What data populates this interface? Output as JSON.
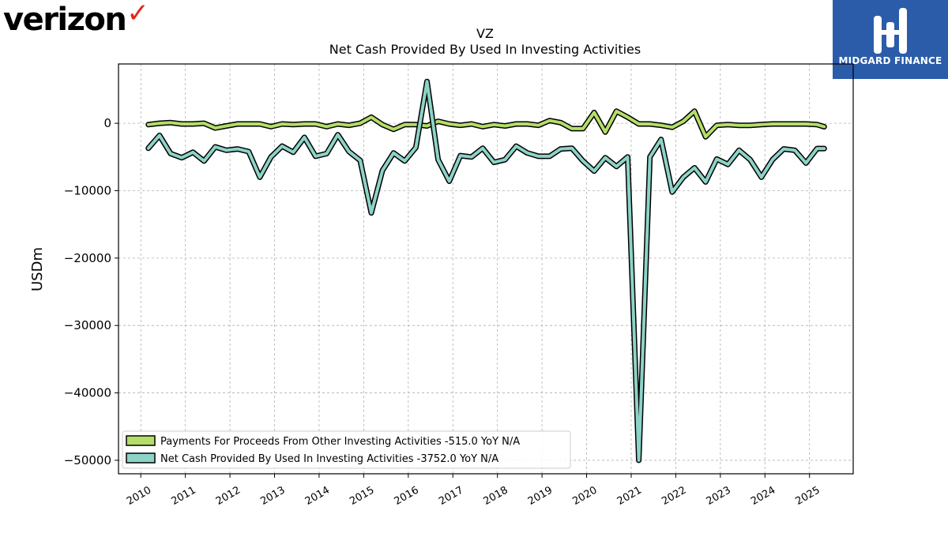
{
  "branding": {
    "company_logo_text": "verizon",
    "company_logo_check": "✓",
    "company_logo_check_color": "#e1261c",
    "provider_logo_text": "MIDGARD FINANCE",
    "provider_logo_bg": "#2a5caa"
  },
  "chart_data": {
    "type": "line",
    "title": "VZ",
    "subtitle": "Net Cash Provided By Used In Investing Activities",
    "ylabel": "USDm",
    "xlabel": "",
    "xlim": [
      2009.5,
      2025.98
    ],
    "ylim": [
      -52000,
      8800
    ],
    "y_ticks": [
      0,
      -10000,
      -20000,
      -30000,
      -40000,
      -50000
    ],
    "y_tick_labels": [
      "0",
      "−10000",
      "−20000",
      "−30000",
      "−40000",
      "−50000"
    ],
    "x_ticks": [
      2010,
      2011,
      2012,
      2013,
      2014,
      2015,
      2016,
      2017,
      2018,
      2019,
      2020,
      2021,
      2022,
      2023,
      2024,
      2025
    ],
    "x_tick_labels": [
      "2010",
      "2011",
      "2012",
      "2013",
      "2014",
      "2015",
      "2016",
      "2017",
      "2018",
      "2019",
      "2020",
      "2021",
      "2022",
      "2023",
      "2024",
      "2025"
    ],
    "grid": true,
    "legend_position": "bottom-left",
    "series": [
      {
        "name": "Payments For Proceeds From Other Investing Activities",
        "legend_label": "Payments For Proceeds From Other Investing Activities  -515.0 YoY N/A",
        "color": "#b3de69",
        "x": [
          2010.17,
          2010.42,
          2010.67,
          2010.92,
          2011.17,
          2011.42,
          2011.67,
          2011.92,
          2012.17,
          2012.42,
          2012.67,
          2012.92,
          2013.17,
          2013.42,
          2013.67,
          2013.92,
          2014.17,
          2014.42,
          2014.67,
          2014.92,
          2015.17,
          2015.42,
          2015.67,
          2015.92,
          2016.17,
          2016.42,
          2016.67,
          2016.92,
          2017.17,
          2017.42,
          2017.67,
          2017.92,
          2018.17,
          2018.42,
          2018.67,
          2018.92,
          2019.17,
          2019.42,
          2019.67,
          2019.92,
          2020.17,
          2020.42,
          2020.67,
          2020.92,
          2021.17,
          2021.42,
          2021.67,
          2021.92,
          2022.17,
          2022.42,
          2022.67,
          2022.92,
          2023.17,
          2023.42,
          2023.67,
          2023.92,
          2024.17,
          2024.42,
          2024.67,
          2024.92,
          2025.17,
          2025.33
        ],
        "values": [
          -200,
          0,
          100,
          -100,
          -100,
          0,
          -700,
          -400,
          -100,
          -100,
          -100,
          -500,
          -100,
          -200,
          -100,
          -100,
          -500,
          -100,
          -300,
          0,
          900,
          -200,
          -900,
          -200,
          -200,
          -400,
          300,
          -100,
          -300,
          -100,
          -500,
          -200,
          -400,
          -100,
          -100,
          -300,
          400,
          100,
          -800,
          -800,
          1600,
          -1300,
          1800,
          900,
          -100,
          -100,
          -300,
          -600,
          300,
          1800,
          -2000,
          -300,
          -200,
          -300,
          -300,
          -200,
          -100,
          -100,
          -100,
          -100,
          -200,
          -515
        ]
      },
      {
        "name": "Net Cash Provided By Used In Investing Activities",
        "legend_label": "Net Cash Provided By Used In Investing Activities  -3752.0 YoY N/A",
        "color": "#8dd3c7",
        "x": [
          2010.17,
          2010.42,
          2010.67,
          2010.92,
          2011.17,
          2011.42,
          2011.67,
          2011.92,
          2012.17,
          2012.42,
          2012.67,
          2012.92,
          2013.17,
          2013.42,
          2013.67,
          2013.92,
          2014.17,
          2014.42,
          2014.67,
          2014.92,
          2015.17,
          2015.42,
          2015.67,
          2015.92,
          2016.17,
          2016.42,
          2016.67,
          2016.92,
          2017.17,
          2017.42,
          2017.67,
          2017.92,
          2018.17,
          2018.42,
          2018.67,
          2018.92,
          2019.17,
          2019.42,
          2019.67,
          2019.92,
          2020.17,
          2020.42,
          2020.67,
          2020.92,
          2021.17,
          2021.42,
          2021.67,
          2021.92,
          2022.17,
          2022.42,
          2022.67,
          2022.92,
          2023.17,
          2023.42,
          2023.67,
          2023.92,
          2024.17,
          2024.42,
          2024.67,
          2024.92,
          2025.17,
          2025.33
        ],
        "values": [
          -3700,
          -1800,
          -4500,
          -5100,
          -4300,
          -5600,
          -3500,
          -4000,
          -3800,
          -4200,
          -8000,
          -5000,
          -3400,
          -4300,
          -2100,
          -4900,
          -4500,
          -1700,
          -4200,
          -5500,
          -13300,
          -7000,
          -4400,
          -5600,
          -3600,
          6200,
          -5400,
          -8600,
          -4800,
          -5000,
          -3700,
          -5800,
          -5400,
          -3400,
          -4400,
          -4900,
          -4900,
          -3800,
          -3700,
          -5600,
          -7100,
          -5100,
          -6400,
          -5000,
          -50000,
          -5000,
          -2400,
          -10200,
          -8000,
          -6600,
          -8700,
          -5300,
          -6100,
          -4000,
          -5400,
          -8000,
          -5400,
          -3800,
          -4000,
          -5900,
          -3752,
          -3752
        ]
      }
    ]
  }
}
